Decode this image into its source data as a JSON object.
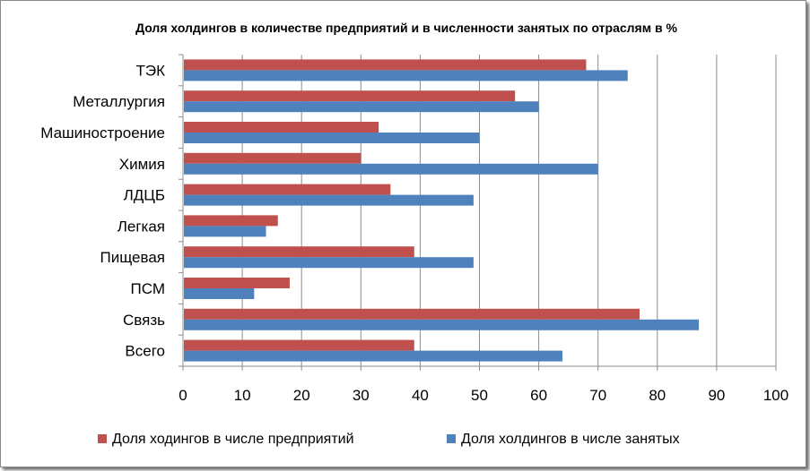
{
  "chart_data": {
    "type": "bar",
    "orientation": "horizontal",
    "title": "Доля холдингов в количестве предприятий и в численности занятых по отраслям в %",
    "categories": [
      "ТЭК",
      "Металлургия",
      "Машиностроение",
      "Химия",
      "ЛДЦБ",
      "Легкая",
      "Пищевая",
      "ПСМ",
      "Связь",
      "Всего"
    ],
    "series": [
      {
        "name": "Доля ходингов в числе предприятий",
        "color": "#c0504d",
        "values": [
          68,
          56,
          33,
          30,
          35,
          16,
          39,
          18,
          77,
          39
        ]
      },
      {
        "name": "Доля холдингов в числе занятых",
        "color": "#4f81bd",
        "values": [
          75,
          60,
          50,
          70,
          49,
          14,
          49,
          12,
          87,
          64
        ]
      }
    ],
    "xlim": [
      0,
      100
    ],
    "x_ticks": [
      "0",
      "10",
      "20",
      "30",
      "40",
      "50",
      "60",
      "70",
      "80",
      "90",
      "100"
    ],
    "grid": "vertical",
    "legend_position": "bottom"
  }
}
